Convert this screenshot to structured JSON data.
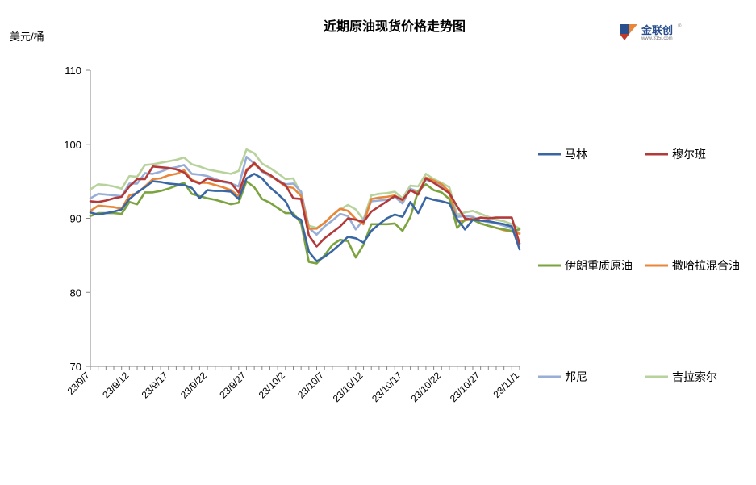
{
  "chart_data": {
    "type": "line",
    "title": "近期原油现货价格走势图",
    "ylabel": "美元/桶",
    "ylim": [
      70,
      110
    ],
    "yticks": [
      70,
      80,
      90,
      100,
      110
    ],
    "xtick_labels": [
      "23/9/7",
      "23/9/12",
      "23/9/17",
      "23/9/22",
      "23/9/27",
      "23/10/2",
      "23/10/7",
      "23/10/12",
      "23/10/17",
      "23/10/22",
      "23/10/27",
      "23/11/1"
    ],
    "xtick_index": [
      0,
      5,
      10,
      15,
      20,
      25,
      30,
      35,
      40,
      45,
      50,
      55
    ],
    "x_count": 56,
    "legend_position": "right",
    "grid": false,
    "series": [
      {
        "name": "马林",
        "color": "#3a67a3",
        "legend_row": 0,
        "legend_col": 0,
        "values": [
          90.8,
          90.5,
          90.7,
          90.9,
          91.2,
          92.6,
          93.5,
          94.2,
          95.0,
          94.9,
          94.7,
          94.6,
          94.5,
          94.1,
          92.7,
          93.8,
          93.7,
          93.7,
          93.6,
          92.6,
          95.4,
          96.0,
          95.4,
          94.2,
          93.3,
          92.3,
          90.3,
          89.8,
          85.5,
          84.2,
          84.8,
          85.6,
          86.5,
          87.5,
          87.3,
          86.7,
          88.3,
          89.2,
          90.0,
          90.5,
          90.2,
          92.2,
          90.7,
          92.8,
          92.5,
          92.3,
          92.0,
          89.9,
          88.5,
          89.8,
          89.7,
          89.6,
          89.4,
          89.2,
          88.9,
          85.8
        ]
      },
      {
        "name": "穆尔班",
        "color": "#b23a3a",
        "legend_row": 0,
        "legend_col": 1,
        "values": [
          92.3,
          92.2,
          92.4,
          92.7,
          92.9,
          94.3,
          95.3,
          95.3,
          97.0,
          96.9,
          96.8,
          96.6,
          96.2,
          95.1,
          94.7,
          95.4,
          95.1,
          95.0,
          94.8,
          93.5,
          96.4,
          97.5,
          96.4,
          95.9,
          95.1,
          94.5,
          92.7,
          92.6,
          87.7,
          86.2,
          87.3,
          88.1,
          88.9,
          90.0,
          89.8,
          89.5,
          90.9,
          91.6,
          92.3,
          93.0,
          92.5,
          93.8,
          93.2,
          95.4,
          94.8,
          94.1,
          93.4,
          91.6,
          90.0,
          89.8,
          90.1,
          90.0,
          90.1,
          90.1,
          90.1,
          86.6
        ]
      },
      {
        "name": "伊朗重质原油",
        "color": "#7ba33e",
        "legend_row": 1,
        "legend_col": 0,
        "values": [
          90.3,
          90.7,
          90.7,
          90.7,
          90.6,
          92.2,
          91.9,
          93.5,
          93.5,
          93.7,
          94.0,
          94.4,
          94.8,
          93.3,
          93.0,
          92.7,
          92.5,
          92.2,
          91.9,
          92.1,
          95.0,
          94.2,
          92.6,
          92.1,
          91.4,
          90.7,
          90.7,
          89.3,
          84.1,
          83.9,
          85.0,
          86.4,
          87.1,
          86.9,
          84.7,
          86.4,
          89.2,
          89.2,
          89.2,
          89.3,
          88.3,
          90.2,
          93.7,
          94.6,
          93.8,
          93.5,
          92.6,
          88.7,
          89.8,
          89.8,
          89.3,
          89.0,
          88.7,
          88.5,
          88.3,
          88.5
        ]
      },
      {
        "name": "撒哈拉混合油",
        "color": "#e8863a",
        "legend_row": 1,
        "legend_col": 1,
        "values": [
          91.0,
          91.7,
          91.6,
          91.5,
          91.3,
          93.1,
          93.4,
          94.3,
          95.3,
          95.4,
          95.8,
          96.0,
          96.5,
          95.2,
          94.8,
          94.8,
          94.5,
          94.2,
          93.8,
          93.0,
          96.6,
          97.3,
          96.5,
          95.8,
          95.1,
          94.3,
          94.1,
          93.0,
          88.6,
          88.6,
          89.4,
          90.4,
          91.3,
          91.0,
          89.9,
          89.2,
          92.6,
          92.8,
          92.9,
          93.1,
          92.4,
          93.8,
          93.4,
          95.5,
          95.1,
          94.6,
          93.6,
          89.6,
          89.7,
          90.0,
          89.3,
          89.0,
          88.7,
          88.4,
          88.2,
          87.9
        ]
      },
      {
        "name": "邦尼",
        "color": "#98aed6",
        "legend_row": 2,
        "legend_col": 0,
        "values": [
          92.7,
          93.3,
          93.2,
          93.1,
          93.0,
          94.7,
          94.7,
          96.1,
          96.0,
          96.3,
          96.7,
          96.9,
          97.2,
          96.0,
          95.9,
          95.7,
          95.3,
          94.9,
          94.7,
          94.3,
          98.3,
          97.4,
          96.3,
          95.7,
          95.2,
          94.6,
          94.7,
          93.6,
          88.7,
          87.8,
          88.9,
          89.7,
          90.6,
          90.3,
          88.5,
          89.8,
          92.3,
          92.4,
          92.5,
          92.9,
          92.0,
          94.0,
          93.6,
          95.2,
          94.9,
          94.3,
          93.4,
          90.2,
          90.3,
          90.2,
          89.7,
          89.5,
          89.3,
          89.0,
          88.6,
          88.0
        ]
      },
      {
        "name": "吉拉索尔",
        "color": "#b8d29c",
        "legend_row": 2,
        "legend_col": 1,
        "values": [
          93.9,
          94.6,
          94.5,
          94.3,
          94.0,
          95.7,
          95.6,
          97.2,
          97.3,
          97.5,
          97.7,
          97.9,
          98.2,
          97.3,
          97.0,
          96.6,
          96.4,
          96.2,
          96.0,
          96.4,
          99.3,
          98.8,
          97.4,
          96.8,
          96.1,
          95.3,
          95.4,
          93.2,
          89.0,
          88.7,
          89.4,
          90.4,
          91.2,
          91.8,
          91.2,
          89.8,
          93.1,
          93.3,
          93.4,
          93.6,
          92.7,
          94.4,
          94.3,
          96.0,
          95.3,
          94.8,
          94.2,
          90.5,
          90.8,
          91.0,
          90.6,
          90.2,
          89.8,
          89.6,
          89.2,
          88.6
        ]
      }
    ]
  },
  "logo": {
    "name": "金联创",
    "sub": "www.315i.com",
    "mark": "®"
  }
}
